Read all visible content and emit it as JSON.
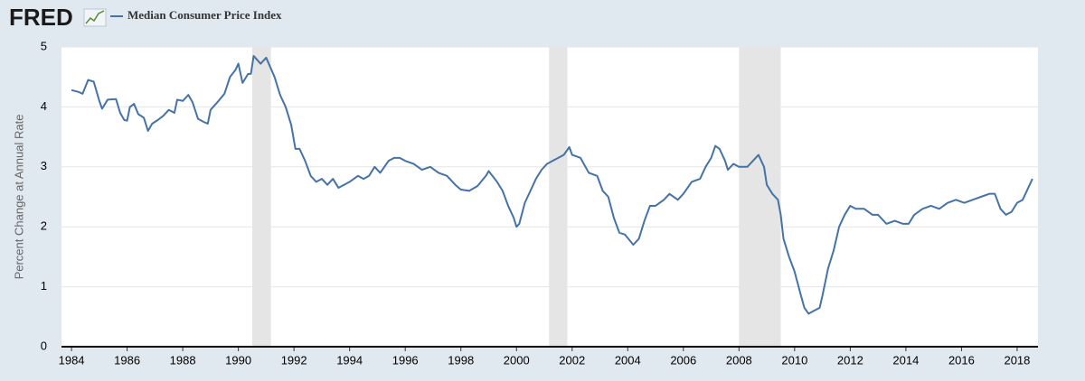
{
  "header": {
    "logo": "FRED"
  },
  "chart_data": {
    "type": "line",
    "y_axis_label": "Percent Change at Annual Rate",
    "xlim": [
      1983.64,
      2018.75
    ],
    "xticks": [
      1984,
      1986,
      1988,
      1990,
      1992,
      1994,
      1996,
      1998,
      2000,
      2002,
      2004,
      2006,
      2008,
      2010,
      2012,
      2014,
      2016,
      2018
    ],
    "ylim": [
      0,
      5
    ],
    "yticks": [
      0,
      1,
      2,
      3,
      4,
      5
    ],
    "grid": true,
    "shaded_ranges": [
      [
        1990.5,
        1991.17
      ],
      [
        2001.17,
        2001.83
      ],
      [
        2008.0,
        2009.5
      ]
    ],
    "shade_color": "#e5e5e5",
    "series": [
      {
        "name": "Median Consumer Price Index",
        "color": "#4572a7",
        "x": [
          1984.0,
          1984.25,
          1984.4,
          1984.6,
          1984.8,
          1985.0,
          1985.1,
          1985.3,
          1985.6,
          1985.75,
          1985.9,
          1986.0,
          1986.1,
          1986.25,
          1986.4,
          1986.6,
          1986.75,
          1986.9,
          1987.1,
          1987.3,
          1987.5,
          1987.7,
          1987.8,
          1988.0,
          1988.2,
          1988.35,
          1988.55,
          1988.75,
          1988.9,
          1989.0,
          1989.25,
          1989.5,
          1989.7,
          1989.9,
          1990.0,
          1990.15,
          1990.35,
          1990.45,
          1990.55,
          1990.8,
          1991.0,
          1991.3,
          1991.5,
          1991.7,
          1991.9,
          1992.05,
          1992.2,
          1992.4,
          1992.6,
          1992.8,
          1993.0,
          1993.2,
          1993.4,
          1993.6,
          1993.8,
          1994.0,
          1994.3,
          1994.5,
          1994.7,
          1994.9,
          1995.1,
          1995.4,
          1995.6,
          1995.8,
          1996.0,
          1996.3,
          1996.6,
          1996.9,
          1997.2,
          1997.5,
          1997.8,
          1998.0,
          1998.3,
          1998.6,
          1998.9,
          1999.0,
          1999.3,
          1999.5,
          1999.7,
          1999.9,
          2000.0,
          2000.1,
          2000.3,
          2000.5,
          2000.7,
          2000.9,
          2001.1,
          2001.3,
          2001.5,
          2001.7,
          2001.9,
          2002.0,
          2002.3,
          2002.6,
          2002.9,
          2003.1,
          2003.3,
          2003.5,
          2003.7,
          2003.9,
          2004.2,
          2004.4,
          2004.6,
          2004.8,
          2005.0,
          2005.3,
          2005.5,
          2005.8,
          2006.0,
          2006.3,
          2006.6,
          2006.8,
          2007.0,
          2007.15,
          2007.3,
          2007.5,
          2007.6,
          2007.8,
          2008.0,
          2008.3,
          2008.5,
          2008.7,
          2008.9,
          2009.0,
          2009.2,
          2009.4,
          2009.5,
          2009.6,
          2009.8,
          2010.0,
          2010.2,
          2010.35,
          2010.5,
          2010.7,
          2010.9,
          2011.0,
          2011.2,
          2011.4,
          2011.6,
          2011.8,
          2012.0,
          2012.2,
          2012.5,
          2012.8,
          2013.0,
          2013.3,
          2013.6,
          2013.9,
          2014.1,
          2014.3,
          2014.6,
          2014.9,
          2015.2,
          2015.5,
          2015.8,
          2016.1,
          2016.4,
          2016.7,
          2017.0,
          2017.2,
          2017.4,
          2017.6,
          2017.8,
          2018.0,
          2018.2,
          2018.4,
          2018.55
        ],
        "values": [
          4.28,
          4.25,
          4.22,
          4.45,
          4.42,
          4.1,
          3.97,
          4.12,
          4.13,
          3.9,
          3.78,
          3.77,
          4.0,
          4.05,
          3.88,
          3.82,
          3.6,
          3.72,
          3.78,
          3.85,
          3.95,
          3.9,
          4.12,
          4.1,
          4.2,
          4.08,
          3.8,
          3.75,
          3.72,
          3.95,
          4.08,
          4.22,
          4.5,
          4.62,
          4.72,
          4.4,
          4.55,
          4.55,
          4.85,
          4.72,
          4.82,
          4.5,
          4.2,
          4.0,
          3.7,
          3.3,
          3.3,
          3.1,
          2.85,
          2.75,
          2.8,
          2.7,
          2.8,
          2.65,
          2.7,
          2.75,
          2.85,
          2.8,
          2.85,
          3.0,
          2.9,
          3.1,
          3.15,
          3.15,
          3.1,
          3.05,
          2.95,
          3.0,
          2.9,
          2.85,
          2.7,
          2.62,
          2.6,
          2.68,
          2.85,
          2.93,
          2.75,
          2.6,
          2.35,
          2.15,
          2.0,
          2.05,
          2.4,
          2.6,
          2.8,
          2.95,
          3.05,
          3.1,
          3.15,
          3.2,
          3.33,
          3.2,
          3.15,
          2.9,
          2.85,
          2.6,
          2.5,
          2.15,
          1.9,
          1.87,
          1.7,
          1.8,
          2.1,
          2.35,
          2.35,
          2.45,
          2.55,
          2.45,
          2.55,
          2.75,
          2.8,
          3.0,
          3.15,
          3.35,
          3.3,
          3.1,
          2.95,
          3.05,
          3.0,
          3.0,
          3.1,
          3.2,
          3.0,
          2.7,
          2.55,
          2.45,
          2.2,
          1.8,
          1.5,
          1.25,
          0.9,
          0.65,
          0.55,
          0.6,
          0.65,
          0.85,
          1.3,
          1.6,
          2.0,
          2.2,
          2.35,
          2.3,
          2.3,
          2.2,
          2.2,
          2.05,
          2.1,
          2.05,
          2.05,
          2.2,
          2.3,
          2.35,
          2.3,
          2.4,
          2.45,
          2.4,
          2.45,
          2.5,
          2.55,
          2.55,
          2.3,
          2.2,
          2.25,
          2.4,
          2.45,
          2.65,
          2.8
        ]
      }
    ]
  }
}
